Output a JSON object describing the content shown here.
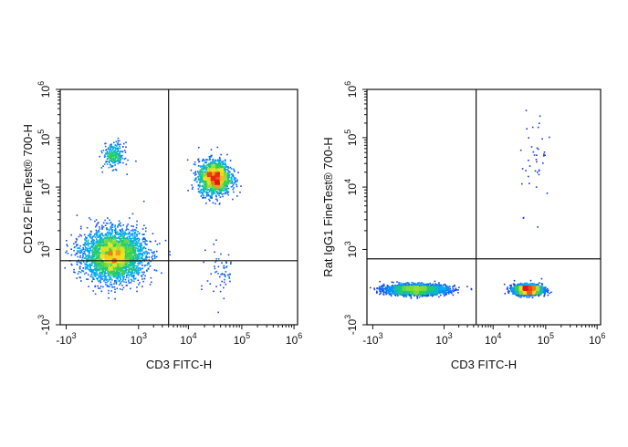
{
  "chart_data": [
    {
      "type": "scatter",
      "xlabel": "CD3 FITC-H",
      "ylabel": "CD162 FineTest® 700-H",
      "x_ticks": [
        {
          "label": "-10",
          "exp": "3"
        },
        {
          "label": "10",
          "exp": "3"
        },
        {
          "label": "10",
          "exp": "4"
        },
        {
          "label": "10",
          "exp": "5"
        },
        {
          "label": "10",
          "exp": "6"
        }
      ],
      "y_ticks": [
        {
          "label": "-10",
          "exp": "3"
        },
        {
          "label": "10",
          "exp": "3"
        },
        {
          "label": "10",
          "exp": "4"
        },
        {
          "label": "10",
          "exp": "5"
        },
        {
          "label": "10",
          "exp": "6"
        }
      ],
      "x_scale": "biexponential",
      "y_scale": "biexponential",
      "xlim": [
        -1000,
        1000000
      ],
      "ylim": [
        -1000,
        1000000
      ],
      "quadrant_gate": {
        "x": 4000,
        "y": 700
      },
      "populations": [
        {
          "x": 300,
          "y": 850,
          "count": 3200,
          "spread_x": 0.55,
          "spread_y": 0.45
        },
        {
          "x": 30000,
          "y": 16000,
          "count": 1600,
          "spread_x": 0.28,
          "spread_y": 0.3
        },
        {
          "x": 300,
          "y": 45000,
          "count": 260,
          "spread_x": 0.18,
          "spread_y": 0.22
        },
        {
          "x": 40000,
          "y": 400,
          "count": 60,
          "spread_x": 0.25,
          "spread_y": 0.5
        }
      ]
    },
    {
      "type": "scatter",
      "xlabel": "CD3 FITC-H",
      "ylabel": "Rat IgG1 FineTest® 700-H",
      "x_ticks": [
        {
          "label": "-10",
          "exp": "3"
        },
        {
          "label": "10",
          "exp": "3"
        },
        {
          "label": "10",
          "exp": "4"
        },
        {
          "label": "10",
          "exp": "5"
        },
        {
          "label": "10",
          "exp": "6"
        }
      ],
      "y_ticks": [
        {
          "label": "-10",
          "exp": "3"
        },
        {
          "label": "10",
          "exp": "3"
        },
        {
          "label": "10",
          "exp": "4"
        },
        {
          "label": "10",
          "exp": "5"
        },
        {
          "label": "10",
          "exp": "6"
        }
      ],
      "x_scale": "biexponential",
      "y_scale": "biexponential",
      "xlim": [
        -1000,
        1000000
      ],
      "ylim": [
        -1000,
        1000000
      ],
      "quadrant_gate": {
        "x": 4500,
        "y": 750
      },
      "populations": [
        {
          "x": 200,
          "y": -50,
          "count": 2400,
          "spread_x": 0.55,
          "spread_y": 0.09
        },
        {
          "x": 45000,
          "y": -50,
          "count": 2200,
          "spread_x": 0.25,
          "spread_y": 0.09
        },
        {
          "x": 60000,
          "y": 40000,
          "count": 40,
          "spread_x": 0.3,
          "spread_y": 0.9
        }
      ]
    }
  ]
}
